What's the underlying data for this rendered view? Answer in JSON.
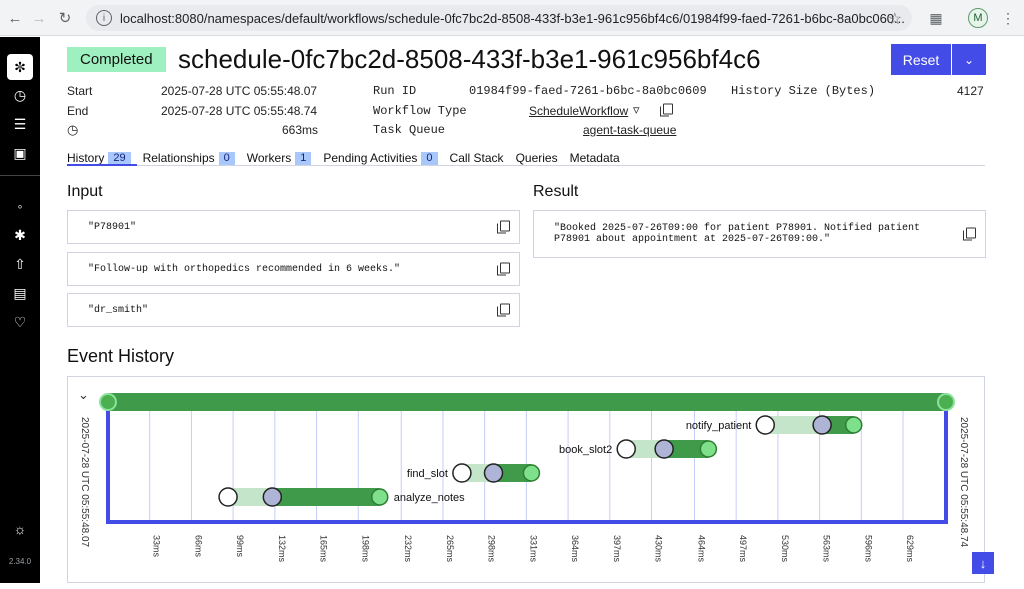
{
  "browser": {
    "url": "localhost:8080/namespaces/default/workflows/schedule-0fc7bc2d-8508-433f-b3e1-961c956bf4c6/01984f99-faed-7261-b6bc-8a0bc060...",
    "profile_initial": "M"
  },
  "sidebar": {
    "version": "2.34.0",
    "icons": [
      "workflows-icon",
      "schedules-icon",
      "batch-icon",
      "archive-icon",
      "nexus-icon",
      "deployments-icon",
      "import-icon",
      "docs-icon",
      "feedback-icon",
      "theme-icon"
    ]
  },
  "header": {
    "status": "Completed",
    "title": "schedule-0fc7bc2d-8508-433f-b3e1-961c956bf4c6",
    "reset_label": "Reset"
  },
  "summary": {
    "start_label": "Start",
    "start_value": "2025-07-28 UTC 05:55:48.07",
    "end_label": "End",
    "end_value": "2025-07-28 UTC 05:55:48.74",
    "duration_value": "663ms",
    "run_id_label": "Run ID",
    "run_id_value": "01984f99-faed-7261-b6bc-8a0bc0609",
    "workflow_type_label": "Workflow Type",
    "workflow_type_value": "ScheduleWorkflow",
    "task_queue_label": "Task Queue",
    "task_queue_value": "agent-task-queue",
    "history_size_label": "History Size (Bytes)",
    "history_size_value": "4127"
  },
  "tabs": [
    {
      "label": "History",
      "count": "29"
    },
    {
      "label": "Relationships",
      "count": "0"
    },
    {
      "label": "Workers",
      "count": "1"
    },
    {
      "label": "Pending Activities",
      "count": "0"
    },
    {
      "label": "Call Stack",
      "count": ""
    },
    {
      "label": "Queries",
      "count": ""
    },
    {
      "label": "Metadata",
      "count": ""
    }
  ],
  "input": {
    "title": "Input",
    "values": [
      "\"P78901\"",
      "\"Follow-up with orthopedics recommended in 6 weeks.\"",
      "\"dr_smith\""
    ]
  },
  "result": {
    "title": "Result",
    "line1": "\"Booked 2025-07-26T09:00 for patient P78901. Notified patient",
    "line2": "P78901 about appointment at 2025-07-26T09:00.\""
  },
  "event_history": {
    "title": "Event History",
    "start_time": "2025-07-28 UTC 05:55:48.07",
    "end_time": "2025-07-28 UTC 05:55:48.74",
    "ticks": [
      "33ms",
      "66ms",
      "99ms",
      "132ms",
      "165ms",
      "198ms",
      "232ms",
      "265ms",
      "298ms",
      "331ms",
      "364ms",
      "397ms",
      "430ms",
      "464ms",
      "497ms",
      "530ms",
      "563ms",
      "596ms",
      "629ms"
    ],
    "total_ms": 663,
    "workflow_color": "#3f9b4a",
    "activities": [
      {
        "name": "analyze_notes",
        "scheduled_ms": 95,
        "started_ms": 130,
        "completed_ms": 215
      },
      {
        "name": "find_slot",
        "scheduled_ms": 280,
        "started_ms": 305,
        "completed_ms": 335
      },
      {
        "name": "book_slot2",
        "scheduled_ms": 410,
        "started_ms": 440,
        "completed_ms": 475
      },
      {
        "name": "notify_patient",
        "scheduled_ms": 520,
        "started_ms": 565,
        "completed_ms": 590
      }
    ]
  }
}
